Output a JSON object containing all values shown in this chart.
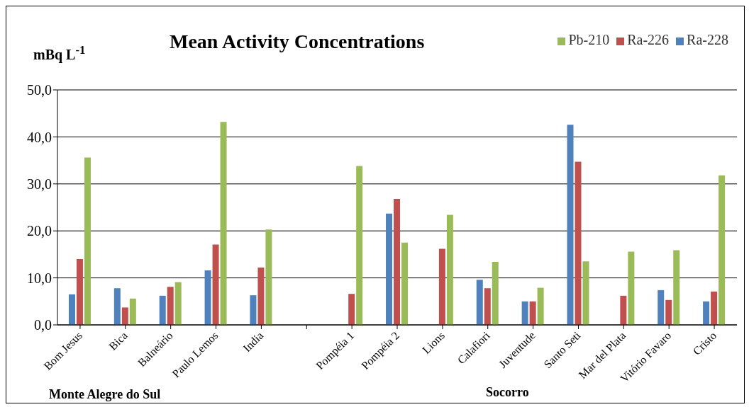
{
  "chart_data": {
    "type": "bar",
    "title": "Mean Activity Concentrations",
    "ylabel": "mBq L$^{-1}$",
    "categories": [
      "Bom Jesus",
      "Bica",
      "Balneário",
      "Paulo Lemos",
      "India",
      null,
      "Pompéia 1",
      "Pompéia 2",
      "Lions",
      "Calafiori",
      "Juventude",
      "Santo Seti",
      "Mar del Plata",
      "Vitório Favaro",
      "Cristo"
    ],
    "series": [
      {
        "name": "Ra-228",
        "color": "#4f81bd",
        "values": [
          6.5,
          7.8,
          6.2,
          11.6,
          6.3,
          null,
          null,
          23.7,
          null,
          9.6,
          5.0,
          42.6,
          null,
          7.4,
          5.0
        ]
      },
      {
        "name": "Ra-226",
        "color": "#c0504d",
        "values": [
          14.0,
          3.7,
          8.1,
          17.1,
          12.2,
          null,
          6.6,
          26.8,
          16.2,
          7.8,
          5.0,
          34.7,
          6.2,
          5.3,
          7.1
        ]
      },
      {
        "name": "Pb-210",
        "color": "#9bbb59",
        "values": [
          35.6,
          5.6,
          9.1,
          43.2,
          20.3,
          null,
          33.8,
          17.5,
          23.4,
          13.4,
          7.9,
          13.5,
          15.6,
          15.9,
          31.8
        ]
      }
    ],
    "ylim": [
      0,
      50
    ],
    "yticks": [
      {
        "value": 0,
        "label": "0,0"
      },
      {
        "value": 10,
        "label": "10,0"
      },
      {
        "value": 20,
        "label": "20,0"
      },
      {
        "value": 30,
        "label": "30,0"
      },
      {
        "value": 40,
        "label": "40,0"
      },
      {
        "value": 50,
        "label": "50,0"
      }
    ],
    "grid": "y",
    "legend": "top right",
    "annotations": [
      "Monte Alegre do Sul",
      "Socorro"
    ]
  }
}
